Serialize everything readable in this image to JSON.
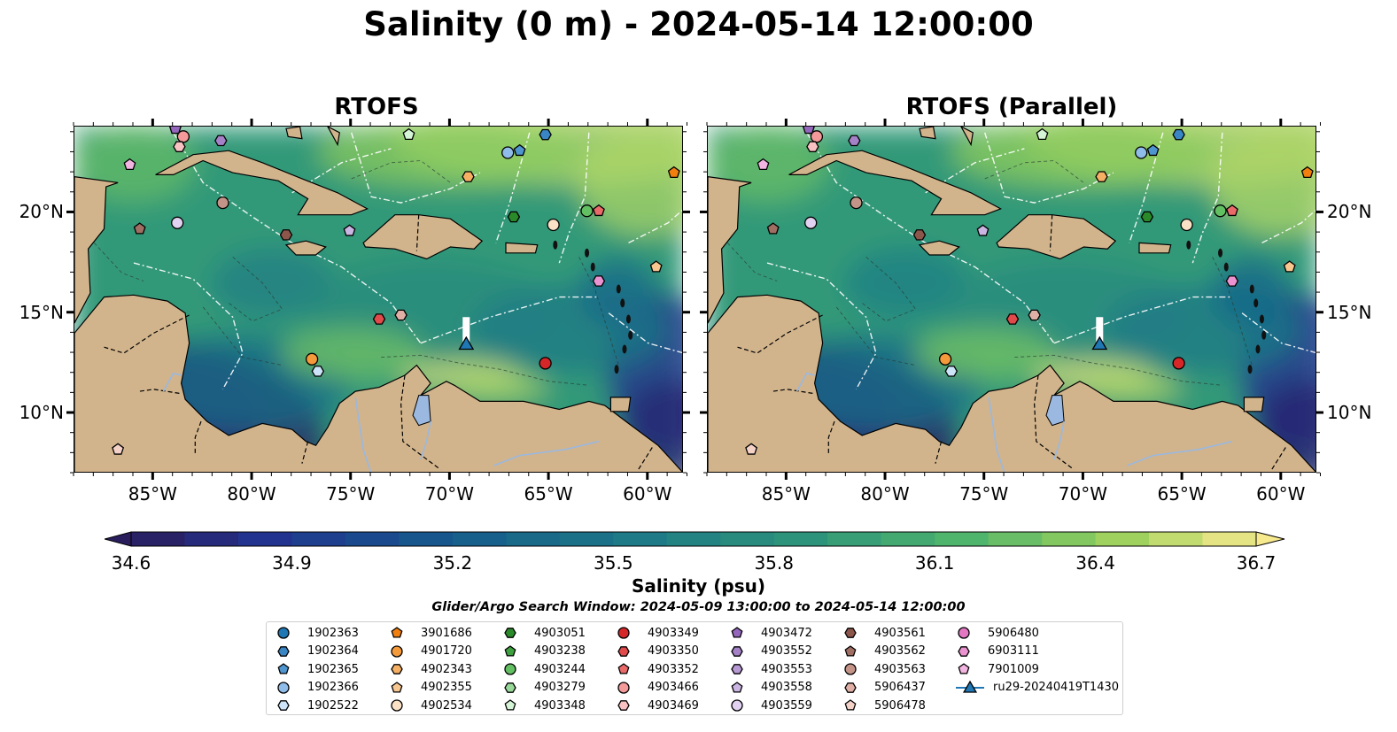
{
  "title": "Salinity (0 m) - 2024-05-14 12:00:00",
  "panels": [
    {
      "title": "RTOFS"
    },
    {
      "title": "RTOFS (Parallel)"
    }
  ],
  "axes": {
    "lon_ticks": [
      "85°W",
      "80°W",
      "75°W",
      "70°W",
      "65°W",
      "60°W"
    ],
    "lat_ticks": [
      "20°N",
      "15°N",
      "10°N"
    ],
    "lon_range": [
      -89,
      -58.2
    ],
    "lat_range": [
      7.0,
      24.3
    ]
  },
  "colorbar": {
    "label": "Salinity (psu)",
    "ticks": [
      "34.6",
      "34.9",
      "35.2",
      "35.5",
      "35.8",
      "36.1",
      "36.4",
      "36.7"
    ],
    "range": [
      34.6,
      36.7
    ],
    "extend": "both"
  },
  "search_window": "Glider/Argo Search Window: 2024-05-09 13:00:00 to 2024-05-14 12:00:00",
  "colors": {
    "land": "#d2b48c",
    "lake": "#9ab8e0"
  },
  "chart_data": {
    "type": "map",
    "variable": "sea surface salinity",
    "depth": "0 m",
    "time": "2024-05-14 12:00:00",
    "colormap": "haline",
    "features": [
      "coastlines",
      "land",
      "country borders",
      "rivers/lakes",
      "EEZ boundaries",
      "bathymetry contours"
    ],
    "legend_placement": "below",
    "platforms": [
      {
        "id": "1902363",
        "marker": "circle",
        "color": "#1f77b4",
        "lon": null,
        "lat": null
      },
      {
        "id": "1902364",
        "marker": "hexagon",
        "color": "#3a86c4",
        "lon": -65.2,
        "lat": 23.9
      },
      {
        "id": "1902365",
        "marker": "pentagon",
        "color": "#4f95d0",
        "lon": -66.5,
        "lat": 23.1
      },
      {
        "id": "1902366",
        "marker": "circle",
        "color": "#8fbce8",
        "lon": -67.1,
        "lat": 23.0
      },
      {
        "id": "1902522",
        "marker": "hexagon",
        "color": "#cde3f8",
        "lon": -76.7,
        "lat": 12.1
      },
      {
        "id": "3901686",
        "marker": "pentagon",
        "color": "#f07f0e",
        "lon": -58.7,
        "lat": 22.0
      },
      {
        "id": "4901720",
        "marker": "circle",
        "color": "#f49a3a",
        "lon": -77.0,
        "lat": 12.7
      },
      {
        "id": "4902343",
        "marker": "hexagon",
        "color": "#f6b064",
        "lon": -69.1,
        "lat": 21.8
      },
      {
        "id": "4902355",
        "marker": "pentagon",
        "color": "#f8c78f",
        "lon": -59.6,
        "lat": 17.3
      },
      {
        "id": "4902534",
        "marker": "circle",
        "color": "#fbe2c6",
        "lon": -64.8,
        "lat": 19.4
      },
      {
        "id": "4903051",
        "marker": "hexagon",
        "color": "#2a8a2a",
        "lon": -66.8,
        "lat": 19.8
      },
      {
        "id": "4903238",
        "marker": "pentagon",
        "color": "#3ea03e",
        "lon": null,
        "lat": null
      },
      {
        "id": "4903244",
        "marker": "circle",
        "color": "#62c062",
        "lon": -63.1,
        "lat": 20.1
      },
      {
        "id": "4903279",
        "marker": "hexagon",
        "color": "#98d898",
        "lon": null,
        "lat": null
      },
      {
        "id": "4903348",
        "marker": "pentagon",
        "color": "#d6f5d6",
        "lon": -72.1,
        "lat": 23.9
      },
      {
        "id": "4903349",
        "marker": "circle",
        "color": "#d62728",
        "lon": -65.2,
        "lat": 12.5
      },
      {
        "id": "4903350",
        "marker": "hexagon",
        "color": "#e04a4a",
        "lon": -73.6,
        "lat": 14.7
      },
      {
        "id": "4903352",
        "marker": "pentagon",
        "color": "#ea6a6a",
        "lon": -62.5,
        "lat": 20.1
      },
      {
        "id": "4903466",
        "marker": "circle",
        "color": "#f49a9a",
        "lon": -83.5,
        "lat": 23.8
      },
      {
        "id": "4903469",
        "marker": "hexagon",
        "color": "#f8c2c2",
        "lon": -83.7,
        "lat": 23.3
      },
      {
        "id": "4903472",
        "marker": "pentagon",
        "color": "#9467bd",
        "lon": -83.9,
        "lat": 24.2
      },
      {
        "id": "4903552",
        "marker": "hexagon",
        "color": "#a581c8",
        "lon": -81.6,
        "lat": 23.6
      },
      {
        "id": "4903553",
        "marker": "hexagon",
        "color": "#b799d4",
        "lon": null,
        "lat": null
      },
      {
        "id": "4903558",
        "marker": "pentagon",
        "color": "#cbb5e2",
        "lon": -75.1,
        "lat": 19.1
      },
      {
        "id": "4903559",
        "marker": "circle",
        "color": "#e0d2f0",
        "lon": -83.8,
        "lat": 19.5
      },
      {
        "id": "4903561",
        "marker": "hexagon",
        "color": "#8c564b",
        "lon": -78.3,
        "lat": 18.9
      },
      {
        "id": "4903562",
        "marker": "pentagon",
        "color": "#a06e62",
        "lon": -85.7,
        "lat": 19.2
      },
      {
        "id": "4903563",
        "marker": "circle",
        "color": "#c59488",
        "lon": -81.5,
        "lat": 20.5
      },
      {
        "id": "5906437",
        "marker": "hexagon",
        "color": "#e0b0a6",
        "lon": -72.5,
        "lat": 14.9
      },
      {
        "id": "5906478",
        "marker": "pentagon",
        "color": "#f5d2c8",
        "lon": -86.8,
        "lat": 8.2
      },
      {
        "id": "5906480",
        "marker": "circle",
        "color": "#e377c2",
        "lon": null,
        "lat": null
      },
      {
        "id": "6903111",
        "marker": "hexagon",
        "color": "#ea93d0",
        "lon": -62.5,
        "lat": 16.6
      },
      {
        "id": "7901009",
        "marker": "pentagon",
        "color": "#f2b4e0",
        "lon": -86.2,
        "lat": 22.4
      },
      {
        "id": "ru29-20240419T1430",
        "marker": "triangle",
        "color": "#1f77b4",
        "lon": -69.2,
        "lat": 13.4,
        "type": "glider"
      }
    ]
  }
}
